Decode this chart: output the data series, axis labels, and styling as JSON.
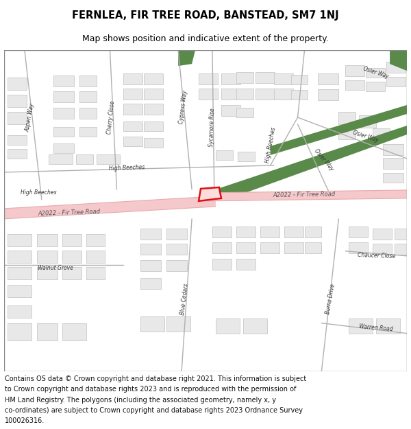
{
  "title_line1": "FERNLEA, FIR TREE ROAD, BANSTEAD, SM7 1NJ",
  "title_line2": "Map shows position and indicative extent of the property.",
  "footer_lines": [
    "Contains OS data © Crown copyright and database right 2021. This information is subject",
    "to Crown copyright and database rights 2023 and is reproduced with the permission of",
    "HM Land Registry. The polygons (including the associated geometry, namely x, y",
    "co-ordinates) are subject to Crown copyright and database rights 2023 Ordnance Survey",
    "100026316."
  ],
  "bg_color": "#ffffff",
  "map_bg": "#ffffff",
  "road_pink": "#f5c8cc",
  "road_edge": "#e8a0a8",
  "building_fill": "#e8e8e8",
  "building_edge": "#c8c8c8",
  "green_fill": "#5a8a4a",
  "road_line_color": "#aaaaaa",
  "road_label_color": "#333333",
  "plot_fill": "#ffcccc",
  "plot_edge": "#dd0000",
  "title_color": "#000000",
  "footer_color": "#111111",
  "title_fontsize": 10.5,
  "subtitle_fontsize": 9,
  "footer_fontsize": 7.0,
  "border_color": "#888888"
}
